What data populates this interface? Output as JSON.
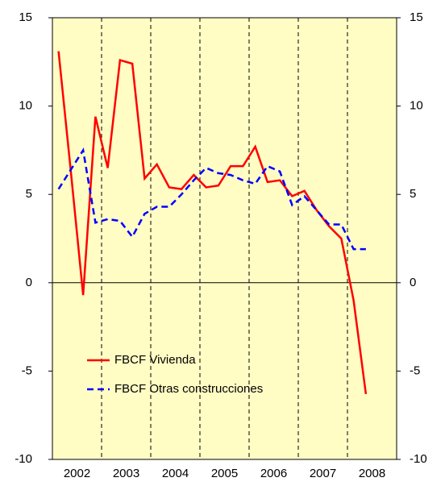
{
  "chart_data": {
    "type": "line",
    "categories": [
      null,
      "2002",
      null,
      null,
      null,
      "2003",
      null,
      null,
      null,
      "2004",
      null,
      null,
      null,
      "2005",
      null,
      null,
      null,
      "2006",
      null,
      null,
      null,
      "2007",
      null,
      null,
      null,
      "2008"
    ],
    "series": [
      {
        "name": "FBCF Vivienda",
        "color": "#ff0000",
        "dash": "solid",
        "values": [
          13.1,
          6.3,
          -0.7,
          9.4,
          6.5,
          12.6,
          12.4,
          5.9,
          6.7,
          5.4,
          5.3,
          6.1,
          5.4,
          5.5,
          6.6,
          6.6,
          7.7,
          5.7,
          5.8,
          4.9,
          5.2,
          4.1,
          3.2,
          2.5,
          -1.0,
          -6.3
        ]
      },
      {
        "name": "FBCF Otras construcciones",
        "color": "#0000ff",
        "dash": "dashed",
        "values": [
          5.3,
          6.4,
          7.5,
          3.4,
          3.6,
          3.5,
          2.6,
          3.9,
          4.3,
          4.3,
          5.0,
          5.8,
          6.5,
          6.2,
          6.1,
          5.8,
          5.6,
          6.6,
          6.3,
          4.4,
          4.9,
          4.1,
          3.3,
          3.3,
          1.9,
          1.9
        ]
      }
    ],
    "ylim": [
      -10,
      15
    ],
    "yticks": [
      -10,
      -5,
      0,
      5,
      10,
      15
    ],
    "y2lim": [
      -10,
      15
    ],
    "y2ticks": [
      -10,
      -5,
      0,
      5,
      10,
      15
    ],
    "background": "#fffcc4",
    "legend": "lower left"
  }
}
